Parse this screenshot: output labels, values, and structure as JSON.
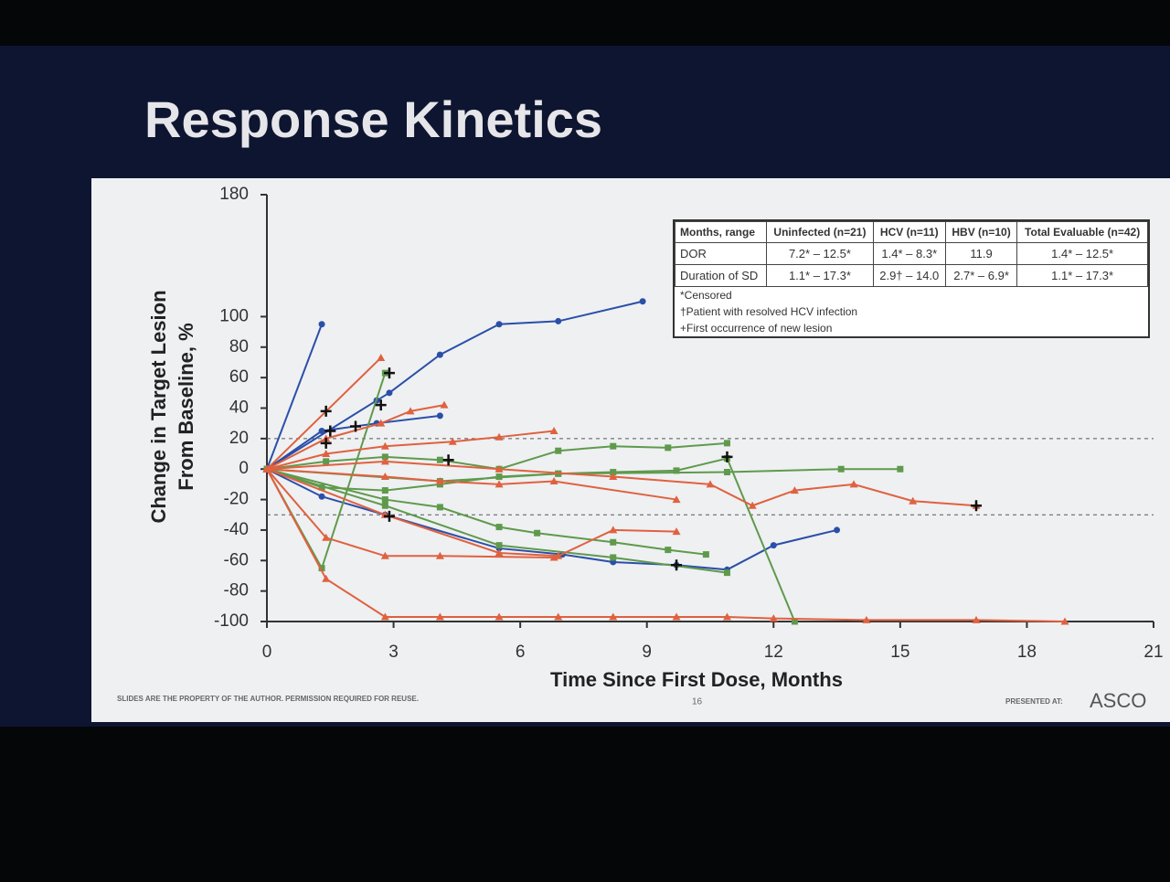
{
  "chart_data": {
    "type": "line",
    "title": "Response Kinetics",
    "xlabel": "Time Since First Dose, Months",
    "ylabel": [
      "Change in Target Lesion",
      "From Baseline, %"
    ],
    "xlim": [
      0,
      21
    ],
    "xticks": [
      0,
      3,
      6,
      9,
      12,
      15,
      18,
      21
    ],
    "ylim": [
      -100,
      180
    ],
    "yticks": [
      -100,
      -80,
      -60,
      -40,
      -20,
      0,
      20,
      40,
      60,
      80,
      100,
      180
    ],
    "reference_lines": [
      20,
      -30
    ],
    "series": [
      {
        "color": "#2b4fa8",
        "marker": "circle",
        "x": [
          0,
          1.3
        ],
        "values": [
          0,
          95
        ]
      },
      {
        "color": "#2b4fa8",
        "marker": "circle",
        "x": [
          0,
          2.6,
          2.9,
          4.1,
          5.5,
          6.9,
          8.9
        ],
        "values": [
          0,
          45,
          50,
          75,
          95,
          97,
          110
        ]
      },
      {
        "color": "#2b4fa8",
        "marker": "circle",
        "x": [
          0,
          1.3,
          2.6,
          4.1
        ],
        "values": [
          0,
          25,
          30,
          35
        ]
      },
      {
        "color": "#2b4fa8",
        "marker": "circle",
        "x": [
          0,
          1.3,
          2.8,
          5.5,
          7,
          8.2,
          9.7,
          10.9,
          12,
          13.5
        ],
        "values": [
          0,
          -18,
          -30,
          -52,
          -56,
          -61,
          -63,
          -66,
          -50,
          -40
        ]
      },
      {
        "color": "#5f9a4c",
        "marker": "square",
        "x": [
          0,
          1.3,
          2.8
        ],
        "values": [
          0,
          -65,
          63
        ]
      },
      {
        "color": "#5f9a4c",
        "marker": "square",
        "x": [
          0,
          1.4,
          2.8,
          4.1,
          5.5,
          6.9,
          8.2,
          9.5,
          10.9
        ],
        "values": [
          0,
          5,
          8,
          6,
          0,
          12,
          15,
          14,
          17
        ]
      },
      {
        "color": "#5f9a4c",
        "marker": "square",
        "x": [
          0,
          1.3,
          2.8,
          4.1,
          5.5,
          6.9,
          8.2,
          9.7,
          10.9,
          12.5
        ],
        "values": [
          0,
          -12,
          -14,
          -10,
          -5,
          -3,
          -2,
          -1,
          7,
          -100
        ]
      },
      {
        "color": "#5f9a4c",
        "marker": "square",
        "x": [
          0,
          2.8,
          4.1,
          5.5,
          6.4,
          8.2,
          9.5,
          10.4
        ],
        "values": [
          0,
          -20,
          -25,
          -38,
          -42,
          -48,
          -53,
          -56
        ]
      },
      {
        "color": "#5f9a4c",
        "marker": "square",
        "x": [
          0,
          2.8,
          5.5,
          8.2,
          10.9
        ],
        "values": [
          0,
          -24,
          -50,
          -58,
          -68
        ]
      },
      {
        "color": "#5f9a4c",
        "marker": "square",
        "x": [
          0,
          4.1,
          6.9,
          10.9,
          13.6,
          15
        ],
        "values": [
          0,
          -8,
          -3,
          -2,
          0,
          0
        ]
      },
      {
        "color": "#e0613f",
        "marker": "triangle",
        "x": [
          0,
          2.7
        ],
        "values": [
          0,
          73
        ]
      },
      {
        "color": "#e0613f",
        "marker": "triangle",
        "x": [
          0,
          1.4,
          2.7,
          3.4,
          4.2
        ],
        "values": [
          0,
          20,
          30,
          38,
          42
        ]
      },
      {
        "color": "#e0613f",
        "marker": "triangle",
        "x": [
          0,
          1.4,
          2.8,
          4.1,
          6.8
        ],
        "values": [
          0,
          -45,
          -57,
          -57,
          -58
        ]
      },
      {
        "color": "#e0613f",
        "marker": "triangle",
        "x": [
          0,
          2.8,
          5.5,
          6.9,
          8.2,
          9.7
        ],
        "values": [
          0,
          -30,
          -55,
          -57,
          -40,
          -41
        ]
      },
      {
        "color": "#e0613f",
        "marker": "triangle",
        "x": [
          0,
          1.4,
          2.8,
          4.1,
          5.5,
          6.9,
          8.2,
          9.7,
          10.9,
          12,
          14.2,
          16.8,
          18.9
        ],
        "values": [
          0,
          -72,
          -97,
          -97,
          -97,
          -97,
          -97,
          -97,
          -97,
          -98,
          -99,
          -99,
          -100
        ]
      },
      {
        "color": "#e0613f",
        "marker": "triangle",
        "x": [
          0,
          2.8,
          5.5,
          8.2,
          10.5,
          11.5,
          12.5,
          13.9,
          15.3,
          16.8
        ],
        "values": [
          0,
          5,
          0,
          -5,
          -10,
          -24,
          -14,
          -10,
          -21,
          -24
        ]
      },
      {
        "color": "#e0613f",
        "marker": "triangle",
        "x": [
          0,
          1.4,
          2.8,
          4.4,
          5.5,
          6.8
        ],
        "values": [
          0,
          10,
          15,
          18,
          21,
          25
        ]
      },
      {
        "color": "#e0613f",
        "marker": "triangle",
        "x": [
          0,
          2.8,
          4.1,
          5.5,
          6.8,
          9.7
        ],
        "values": [
          0,
          -5,
          -8,
          -10,
          -8,
          -20
        ]
      }
    ],
    "new_lesions": {
      "x": [
        1.4,
        1.5,
        1.4,
        2.1,
        2.7,
        2.9,
        2.9,
        4.3,
        9.7,
        10.9,
        16.8
      ],
      "values": [
        38,
        25,
        17,
        28,
        42,
        63,
        -31,
        6,
        -63,
        8,
        -24
      ]
    },
    "table": {
      "header": [
        "Months, range",
        "Uninfected (n=21)",
        "HCV (n=11)",
        "HBV (n=10)",
        "Total Evaluable (n=42)"
      ],
      "rows": [
        [
          "DOR",
          "7.2* – 12.5*",
          "1.4* – 8.3*",
          "11.9",
          "1.4* – 12.5*"
        ],
        [
          "Duration of SD",
          "1.1* – 17.3*",
          "2.9† – 14.0",
          "2.7* – 6.9*",
          "1.1* – 17.3*"
        ]
      ],
      "footnotes": [
        "*Censored",
        "†Patient with resolved HCV infection",
        "+First occurrence of new lesion"
      ]
    }
  },
  "footer": {
    "notice": "SLIDES ARE THE PROPERTY OF THE AUTHOR. PERMISSION REQUIRED FOR REUSE.",
    "page": "16",
    "presented": "PRESENTED AT:",
    "logo": "ASCO"
  }
}
